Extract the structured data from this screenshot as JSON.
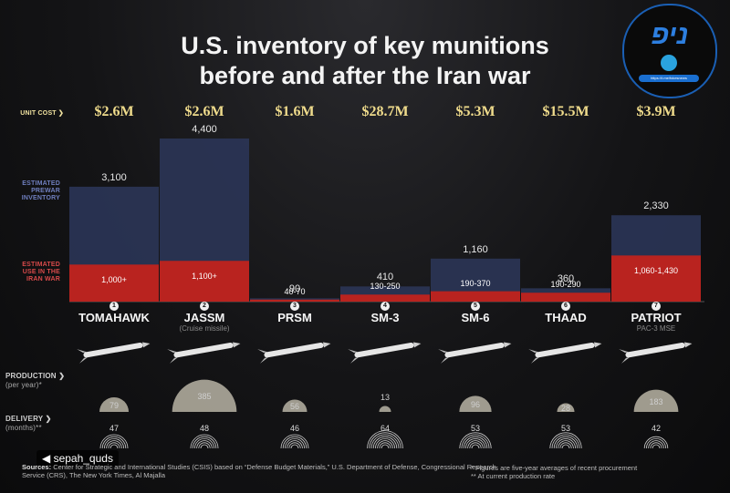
{
  "title_line1": "U.S. inventory of key munitions",
  "title_line2": "before and after the Iran war",
  "row_labels": {
    "unit_cost": "UNIT COST ❯",
    "prewar_l1": "ESTIMATED",
    "prewar_l2": "PREWAR",
    "prewar_l3": "INVENTORY",
    "use_l1": "ESTIMATED",
    "use_l2": "USE IN THE",
    "use_l3": "IRAN WAR",
    "production": "PRODUCTION ❯",
    "production_sub": "(per year)*",
    "delivery": "DELIVERY ❯",
    "delivery_sub": "(months)**"
  },
  "colors": {
    "prewar": "#2b3557",
    "use": "#b9231f",
    "cost": "#f0dc8c",
    "logo_accent": "#2d7fe0"
  },
  "chart_data": {
    "type": "bar",
    "categories": [
      "TOMAHAWK",
      "JASSM",
      "PRSM",
      "SM-3",
      "SM-6",
      "THAAD",
      "PATRIOT"
    ],
    "numbers": [
      "1",
      "2",
      "3",
      "4",
      "5",
      "6",
      "7"
    ],
    "subtitles": [
      "",
      "(Cruise missile)",
      "",
      "",
      "",
      "",
      "PAC-3 MSE"
    ],
    "unit_cost": [
      "$2.6M",
      "$2.6M",
      "$1.6M",
      "$28.7M",
      "$5.3M",
      "$15.5M",
      "$3.9M"
    ],
    "series": [
      {
        "name": "Estimated prewar inventory",
        "values": [
          3100,
          4400,
          90,
          410,
          1160,
          360,
          2330
        ],
        "labels": [
          "3,100",
          "4,400",
          "90",
          "410",
          "1,160",
          "360",
          "2,330"
        ]
      },
      {
        "name": "Estimated use in the Iran war",
        "values": [
          1000,
          1100,
          55,
          190,
          280,
          240,
          1245
        ],
        "labels": [
          "1,000+",
          "1,100+",
          "40-70",
          "130-250",
          "190-370",
          "190-290",
          "1,060-1,430"
        ]
      }
    ],
    "production_per_year": [
      79,
      385,
      56,
      13,
      96,
      28,
      183
    ],
    "delivery_months": [
      47,
      48,
      46,
      64,
      53,
      53,
      42
    ]
  },
  "footer": {
    "sources_label": "Sources:",
    "sources_text": " Center for Strategic and International Studies (CSIS) based on “Defense Budget Materials,” U.S. Department of Defense, Congressional Research Service (CRS), The New York Times, Al Majalla",
    "note1": "* Figures are five-year averages of recent procurement",
    "note2": "** At current production rate"
  },
  "watermark": "◀ sepah_quds",
  "logo": {
    "main": "ניפ",
    "sub": "תט",
    "link": "https://t.me/fokesnews"
  }
}
